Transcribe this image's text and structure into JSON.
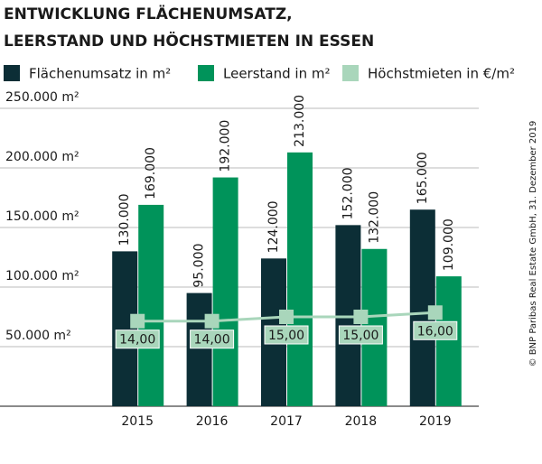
{
  "chart_data": {
    "type": "bar",
    "title_lines": [
      "ENTWICKLUNG FLÄCHENUMSATZ,",
      "LEERSTAND UND HÖCHSTMIETEN IN ESSEN"
    ],
    "categories": [
      "2015",
      "2016",
      "2017",
      "2018",
      "2019"
    ],
    "series": [
      {
        "name": "Flächenumsatz in m²",
        "color": "#0c2e36",
        "values": [
          130000,
          95000,
          124000,
          152000,
          165000
        ],
        "value_labels": [
          "130.000",
          "95.000",
          "124.000",
          "152.000",
          "165.000"
        ]
      },
      {
        "name": "Leerstand in m²",
        "color": "#00935a",
        "values": [
          169000,
          192000,
          213000,
          132000,
          109000
        ],
        "value_labels": [
          "169.000",
          "192.000",
          "213.000",
          "132.000",
          "109.000"
        ]
      },
      {
        "name": "Höchstmieten in €/m²",
        "color": "#a9d6bb",
        "type": "line",
        "axis": "y2",
        "values": [
          14,
          14,
          15,
          15,
          16
        ],
        "value_labels": [
          "14,00",
          "14,00",
          "15,00",
          "15,00",
          "16,00"
        ]
      }
    ],
    "ylim": [
      0,
      250000
    ],
    "yticks": [
      {
        "value": 50000,
        "label": "50.000 m²"
      },
      {
        "value": 100000,
        "label": "100.000 m²"
      },
      {
        "value": 150000,
        "label": "150.000 m²"
      },
      {
        "value": 200000,
        "label": "200.000 m²"
      },
      {
        "value": 250000,
        "label": "250.000 m²"
      }
    ],
    "y2lim": [
      -6,
      64
    ],
    "grid": true,
    "source": "© BNP Paribas Real Estate GmbH, 31. Dezember 2019"
  }
}
